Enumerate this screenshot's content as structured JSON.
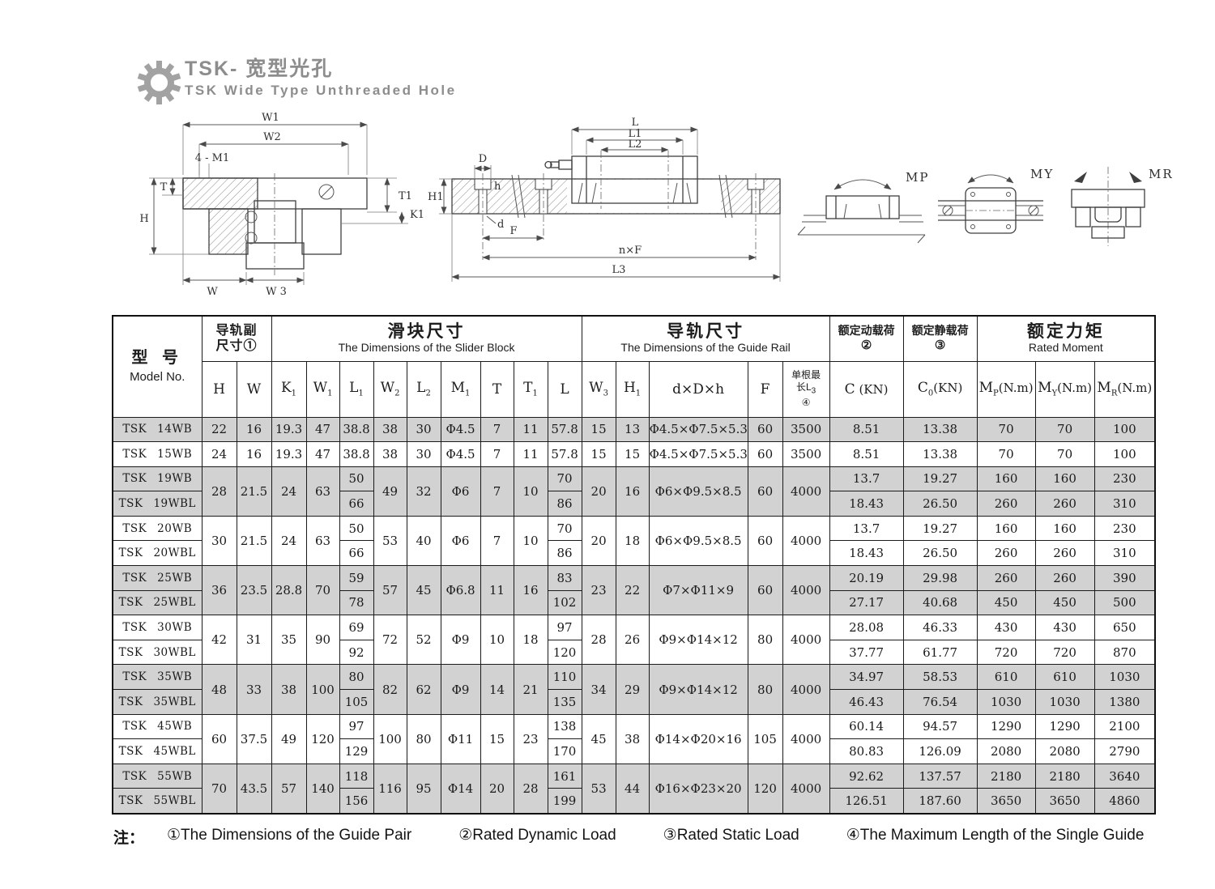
{
  "logo": {
    "title_cn": "TSK- 宽型光孔",
    "title_en": "TSK Wide Type Unthreaded Hole"
  },
  "drawings": {
    "cross_section": {
      "w1": "W1",
      "w2": "W2",
      "m1": "4 - M1",
      "t": "T",
      "h": "H",
      "t1": "T1",
      "k1": "K1",
      "w": "W",
      "w3": "W 3"
    },
    "side_view": {
      "l": "L",
      "l1": "L1",
      "l2": "L2",
      "d_big": "D",
      "h_small": "h",
      "h1": "H1",
      "d_small": "d",
      "f": "F",
      "nf": "n×F",
      "l3": "L3"
    },
    "moments": {
      "mp": "MP",
      "my": "MY",
      "mr": "MR"
    }
  },
  "table": {
    "model_header": {
      "cn": "型 号",
      "en": "Model No."
    },
    "groups": {
      "guide_pair": {
        "line1": "导轨副",
        "line2": "尺寸①"
      },
      "slider": {
        "cn": "滑块尺寸",
        "en": "The Dimensions of the Slider Block"
      },
      "rail": {
        "cn": "导轨尺寸",
        "en": "The Dimensions of the Guide Rail"
      },
      "dyn": {
        "cn": "额定动载荷",
        "mark": "②"
      },
      "stat": {
        "cn": "额定静载荷",
        "mark": "③"
      },
      "moment": {
        "cn": "额定力矩",
        "en": "Rated Moment"
      }
    },
    "columns": [
      {
        "base": "H"
      },
      {
        "base": "W"
      },
      {
        "base": "K",
        "sub": "1"
      },
      {
        "base": "W",
        "sub": "1"
      },
      {
        "base": "L",
        "sub": "1"
      },
      {
        "base": "W",
        "sub": "2"
      },
      {
        "base": "L",
        "sub": "2"
      },
      {
        "base": "M",
        "sub": "1"
      },
      {
        "base": "T"
      },
      {
        "base": "T",
        "sub": "1"
      },
      {
        "base": "L"
      },
      {
        "base": "W",
        "sub": "3"
      },
      {
        "base": "H",
        "sub": "1"
      },
      {
        "base": "d×D×h"
      },
      {
        "base": "F"
      },
      {
        "line1": "单根最",
        "base": "长L",
        "sub": "3",
        "mark": "④"
      },
      {
        "base": "C",
        "rest": " (KN)"
      },
      {
        "base": "C",
        "sub": "0",
        "rest": "(KN)"
      },
      {
        "base": "M",
        "sub": "P",
        "rest": "(N.m)"
      },
      {
        "base": "M",
        "sub": "Y",
        "rest": "(N.m)"
      },
      {
        "base": "M",
        "sub": "R",
        "rest": "(N.m)"
      }
    ],
    "row_groups": [
      {
        "shaded": true,
        "models": [
          {
            "brand": "TSK",
            "code": "14WB"
          }
        ],
        "merged": {
          "H": "22",
          "W": "16",
          "K1": "19.3",
          "W1": "47",
          "W2": "38",
          "L2": "30",
          "M1": "Φ4.5",
          "T": "7",
          "T1": "11",
          "W3": "15",
          "H1": "13",
          "dDh": "Φ4.5×Φ7.5×5.3",
          "F": "60",
          "L3": "3500"
        },
        "per_row": {
          "L1": [
            "38.8"
          ],
          "L": [
            "57.8"
          ],
          "C": [
            "8.51"
          ],
          "C0": [
            "13.38"
          ],
          "MP": [
            "70"
          ],
          "MY": [
            "70"
          ],
          "MR": [
            "100"
          ]
        }
      },
      {
        "shaded": false,
        "models": [
          {
            "brand": "TSK",
            "code": "15WB"
          }
        ],
        "merged": {
          "H": "24",
          "W": "16",
          "K1": "19.3",
          "W1": "47",
          "W2": "38",
          "L2": "30",
          "M1": "Φ4.5",
          "T": "7",
          "T1": "11",
          "W3": "15",
          "H1": "15",
          "dDh": "Φ4.5×Φ7.5×5.3",
          "F": "60",
          "L3": "3500"
        },
        "per_row": {
          "L1": [
            "38.8"
          ],
          "L": [
            "57.8"
          ],
          "C": [
            "8.51"
          ],
          "C0": [
            "13.38"
          ],
          "MP": [
            "70"
          ],
          "MY": [
            "70"
          ],
          "MR": [
            "100"
          ]
        }
      },
      {
        "shaded": true,
        "models": [
          {
            "brand": "TSK",
            "code": "19WB"
          },
          {
            "brand": "TSK",
            "code": "19WBL"
          }
        ],
        "merged": {
          "H": "28",
          "W": "21.5",
          "K1": "24",
          "W1": "63",
          "W2": "49",
          "L2": "32",
          "M1": "Φ6",
          "T": "7",
          "T1": "10",
          "W3": "20",
          "H1": "16",
          "dDh": "Φ6×Φ9.5×8.5",
          "F": "60",
          "L3": "4000"
        },
        "per_row": {
          "L1": [
            "50",
            "66"
          ],
          "L": [
            "70",
            "86"
          ],
          "C": [
            "13.7",
            "18.43"
          ],
          "C0": [
            "19.27",
            "26.50"
          ],
          "MP": [
            "160",
            "260"
          ],
          "MY": [
            "160",
            "260"
          ],
          "MR": [
            "230",
            "310"
          ]
        }
      },
      {
        "shaded": false,
        "models": [
          {
            "brand": "TSK",
            "code": "20WB"
          },
          {
            "brand": "TSK",
            "code": "20WBL"
          }
        ],
        "merged": {
          "H": "30",
          "W": "21.5",
          "K1": "24",
          "W1": "63",
          "W2": "53",
          "L2": "40",
          "M1": "Φ6",
          "T": "7",
          "T1": "10",
          "W3": "20",
          "H1": "18",
          "dDh": "Φ6×Φ9.5×8.5",
          "F": "60",
          "L3": "4000"
        },
        "per_row": {
          "L1": [
            "50",
            "66"
          ],
          "L": [
            "70",
            "86"
          ],
          "C": [
            "13.7",
            "18.43"
          ],
          "C0": [
            "19.27",
            "26.50"
          ],
          "MP": [
            "160",
            "260"
          ],
          "MY": [
            "160",
            "260"
          ],
          "MR": [
            "230",
            "310"
          ]
        }
      },
      {
        "shaded": true,
        "models": [
          {
            "brand": "TSK",
            "code": "25WB"
          },
          {
            "brand": "TSK",
            "code": "25WBL"
          }
        ],
        "merged": {
          "H": "36",
          "W": "23.5",
          "K1": "28.8",
          "W1": "70",
          "W2": "57",
          "L2": "45",
          "M1": "Φ6.8",
          "T": "11",
          "T1": "16",
          "W3": "23",
          "H1": "22",
          "dDh": "Φ7×Φ11×9",
          "F": "60",
          "L3": "4000"
        },
        "per_row": {
          "L1": [
            "59",
            "78"
          ],
          "L": [
            "83",
            "102"
          ],
          "C": [
            "20.19",
            "27.17"
          ],
          "C0": [
            "29.98",
            "40.68"
          ],
          "MP": [
            "260",
            "450"
          ],
          "MY": [
            "260",
            "450"
          ],
          "MR": [
            "390",
            "500"
          ]
        }
      },
      {
        "shaded": false,
        "models": [
          {
            "brand": "TSK",
            "code": "30WB"
          },
          {
            "brand": "TSK",
            "code": "30WBL"
          }
        ],
        "merged": {
          "H": "42",
          "W": "31",
          "K1": "35",
          "W1": "90",
          "W2": "72",
          "L2": "52",
          "M1": "Φ9",
          "T": "10",
          "T1": "18",
          "W3": "28",
          "H1": "26",
          "dDh": "Φ9×Φ14×12",
          "F": "80",
          "L3": "4000"
        },
        "per_row": {
          "L1": [
            "69",
            "92"
          ],
          "L": [
            "97",
            "120"
          ],
          "C": [
            "28.08",
            "37.77"
          ],
          "C0": [
            "46.33",
            "61.77"
          ],
          "MP": [
            "430",
            "720"
          ],
          "MY": [
            "430",
            "720"
          ],
          "MR": [
            "650",
            "870"
          ]
        }
      },
      {
        "shaded": true,
        "models": [
          {
            "brand": "TSK",
            "code": "35WB"
          },
          {
            "brand": "TSK",
            "code": "35WBL"
          }
        ],
        "merged": {
          "H": "48",
          "W": "33",
          "K1": "38",
          "W1": "100",
          "W2": "82",
          "L2": "62",
          "M1": "Φ9",
          "T": "14",
          "T1": "21",
          "W3": "34",
          "H1": "29",
          "dDh": "Φ9×Φ14×12",
          "F": "80",
          "L3": "4000"
        },
        "per_row": {
          "L1": [
            "80",
            "105"
          ],
          "L": [
            "110",
            "135"
          ],
          "C": [
            "34.97",
            "46.43"
          ],
          "C0": [
            "58.53",
            "76.54"
          ],
          "MP": [
            "610",
            "1030"
          ],
          "MY": [
            "610",
            "1030"
          ],
          "MR": [
            "1030",
            "1380"
          ]
        }
      },
      {
        "shaded": false,
        "models": [
          {
            "brand": "TSK",
            "code": "45WB"
          },
          {
            "brand": "TSK",
            "code": "45WBL"
          }
        ],
        "merged": {
          "H": "60",
          "W": "37.5",
          "K1": "49",
          "W1": "120",
          "W2": "100",
          "L2": "80",
          "M1": "Φ11",
          "T": "15",
          "T1": "23",
          "W3": "45",
          "H1": "38",
          "dDh": "Φ14×Φ20×16",
          "F": "105",
          "L3": "4000"
        },
        "per_row": {
          "L1": [
            "97",
            "129"
          ],
          "L": [
            "138",
            "170"
          ],
          "C": [
            "60.14",
            "80.83"
          ],
          "C0": [
            "94.57",
            "126.09"
          ],
          "MP": [
            "1290",
            "2080"
          ],
          "MY": [
            "1290",
            "2080"
          ],
          "MR": [
            "2100",
            "2790"
          ]
        }
      },
      {
        "shaded": true,
        "models": [
          {
            "brand": "TSK",
            "code": "55WB"
          },
          {
            "brand": "TSK",
            "code": "55WBL"
          }
        ],
        "merged": {
          "H": "70",
          "W": "43.5",
          "K1": "57",
          "W1": "140",
          "W2": "116",
          "L2": "95",
          "M1": "Φ14",
          "T": "20",
          "T1": "28",
          "W3": "53",
          "H1": "44",
          "dDh": "Φ16×Φ23×20",
          "F": "120",
          "L3": "4000"
        },
        "per_row": {
          "L1": [
            "118",
            "156"
          ],
          "L": [
            "161",
            "199"
          ],
          "C": [
            "92.62",
            "126.51"
          ],
          "C0": [
            "137.57",
            "187.60"
          ],
          "MP": [
            "2180",
            "3650"
          ],
          "MY": [
            "2180",
            "3650"
          ],
          "MR": [
            "3640",
            "4860"
          ]
        }
      }
    ]
  },
  "footnote": {
    "prefix": "注：",
    "items": [
      "①The Dimensions of the Guide Pair",
      "②Rated Dynamic Load",
      "③Rated Static Load",
      "④The Maximum Length of the Single Guide"
    ]
  },
  "colors": {
    "shaded_row": "#d2d2d2",
    "line": "#1b1b1b",
    "logo_gray": "#8d8d8d"
  }
}
